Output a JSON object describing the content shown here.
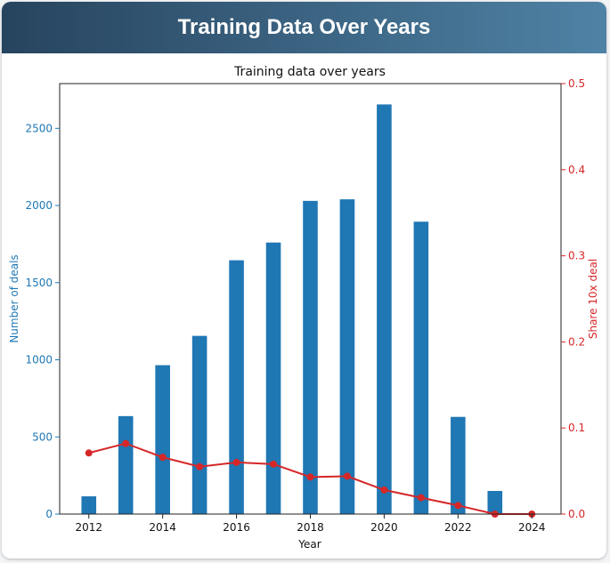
{
  "header": {
    "title": "Training Data Over Years"
  },
  "colors": {
    "bars": "#1f77b4",
    "line": "#d62728",
    "left_axis": "#1f77b4",
    "right_axis": "#d62728"
  },
  "chart_data": {
    "type": "bar",
    "title": "Training data over years",
    "xlabel": "Year",
    "ylabel": "Number of deals",
    "y2label": "Share 10x deal",
    "x": [
      2012,
      2013,
      2014,
      2015,
      2016,
      2017,
      2018,
      2019,
      2020,
      2021,
      2022,
      2023,
      2024
    ],
    "xticks": [
      2012,
      2014,
      2016,
      2018,
      2020,
      2022,
      2024
    ],
    "ylim": [
      0,
      2790
    ],
    "yticks": [
      0,
      500,
      1000,
      1500,
      2000,
      2500
    ],
    "y2lim": [
      0,
      0.5
    ],
    "y2ticks": [
      0.0,
      0.1,
      0.2,
      0.3,
      0.4,
      0.5
    ],
    "series": [
      {
        "name": "Number of deals",
        "type": "bar",
        "axis": "left",
        "values": [
          115,
          635,
          965,
          1155,
          1645,
          1760,
          2030,
          2040,
          2655,
          1895,
          630,
          150,
          0
        ]
      },
      {
        "name": "Share 10x deal",
        "type": "line",
        "axis": "right",
        "values": [
          0.071,
          0.082,
          0.066,
          0.055,
          0.06,
          0.058,
          0.043,
          0.044,
          0.028,
          0.019,
          0.01,
          0.0,
          0.0
        ]
      }
    ],
    "grid": false,
    "legend": "none"
  }
}
